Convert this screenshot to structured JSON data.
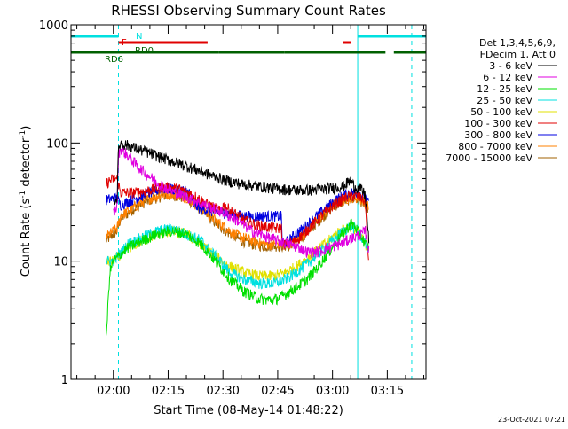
{
  "chart_data": {
    "type": "line",
    "title": "RHESSI Observing Summary Count Rates",
    "xlabel": "Start Time (08-May-14 01:48:22)",
    "ylabel_main": "Count Rate (s",
    "ylabel_sup1": "-1",
    "ylabel_mid": " detector",
    "ylabel_sup2": "-1",
    "ylabel_end": ")",
    "yscale": "log",
    "ylim": [
      1,
      1000
    ],
    "xlim_minutes": [
      108.4,
      205.6
    ],
    "x_ticks": [
      {
        "value": 120,
        "label": "02:00"
      },
      {
        "value": 135,
        "label": "02:15"
      },
      {
        "value": 150,
        "label": "02:30"
      },
      {
        "value": 165,
        "label": "02:45"
      },
      {
        "value": 180,
        "label": "03:00"
      },
      {
        "value": 195,
        "label": "03:15"
      }
    ],
    "y_ticks": [
      {
        "value": 1,
        "label": "1"
      },
      {
        "value": 10,
        "label": "10"
      },
      {
        "value": 100,
        "label": "100"
      },
      {
        "value": 1000,
        "label": "1000"
      }
    ],
    "legend_position": "right",
    "legend_header": [
      "Det 1,3,4,5,6,9,",
      "FDecim 1, Att 0"
    ],
    "series": [
      {
        "name": "3 - 6 keV",
        "color": "#000000",
        "points": [
          [
            120,
            33
          ],
          [
            121,
            33
          ],
          [
            121.4,
            90
          ],
          [
            122,
            100
          ],
          [
            125,
            93
          ],
          [
            130,
            82
          ],
          [
            135,
            72
          ],
          [
            140,
            64
          ],
          [
            145,
            56
          ],
          [
            150,
            49
          ],
          [
            155,
            45
          ],
          [
            160,
            43
          ],
          [
            165,
            41
          ],
          [
            170,
            40
          ],
          [
            174,
            40
          ],
          [
            178,
            41
          ],
          [
            181,
            42
          ],
          [
            183,
            43
          ],
          [
            184,
            46
          ],
          [
            185,
            48
          ],
          [
            186,
            43
          ],
          [
            188,
            40
          ],
          [
            189,
            36
          ],
          [
            190,
            14
          ]
        ]
      },
      {
        "name": "6 - 12 keV",
        "color": "#e000e0",
        "points": [
          [
            120,
            26
          ],
          [
            121,
            28
          ],
          [
            121.4,
            80
          ],
          [
            122,
            90
          ],
          [
            124,
            78
          ],
          [
            127,
            62
          ],
          [
            130,
            52
          ],
          [
            133,
            44
          ],
          [
            136,
            39
          ],
          [
            139,
            36
          ],
          [
            142,
            33
          ],
          [
            146,
            29
          ],
          [
            150,
            26
          ],
          [
            154,
            22
          ],
          [
            158,
            18
          ],
          [
            162,
            16
          ],
          [
            165,
            15
          ],
          [
            168,
            14
          ],
          [
            171,
            13
          ],
          [
            173,
            12
          ],
          [
            176,
            12
          ],
          [
            179,
            13
          ],
          [
            182,
            14
          ],
          [
            184,
            15
          ],
          [
            186,
            16
          ],
          [
            188,
            17
          ],
          [
            189,
            18
          ],
          [
            190,
            12
          ]
        ]
      },
      {
        "name": "12 - 25 keV",
        "color": "#00e000",
        "points": [
          [
            118,
            2.1
          ],
          [
            119,
            8
          ],
          [
            120,
            10
          ],
          [
            124,
            13
          ],
          [
            128,
            15
          ],
          [
            132,
            17
          ],
          [
            136,
            18
          ],
          [
            140,
            17
          ],
          [
            144,
            14
          ],
          [
            148,
            10
          ],
          [
            152,
            7
          ],
          [
            156,
            5.5
          ],
          [
            160,
            4.8
          ],
          [
            164,
            4.7
          ],
          [
            167,
            5.2
          ],
          [
            170,
            6
          ],
          [
            173,
            7
          ],
          [
            176,
            9
          ],
          [
            179,
            12
          ],
          [
            182,
            16
          ],
          [
            184,
            19
          ],
          [
            185,
            21
          ],
          [
            186,
            20
          ],
          [
            188,
            16
          ],
          [
            189,
            14
          ],
          [
            190,
            13
          ]
        ]
      },
      {
        "name": "25 - 50 keV",
        "color": "#00e0e0",
        "points": [
          [
            118,
            10
          ],
          [
            120,
            10
          ],
          [
            124,
            14
          ],
          [
            128,
            16
          ],
          [
            132,
            18
          ],
          [
            136,
            19
          ],
          [
            140,
            17
          ],
          [
            144,
            15
          ],
          [
            148,
            11
          ],
          [
            152,
            8
          ],
          [
            156,
            7
          ],
          [
            160,
            6.5
          ],
          [
            164,
            6.5
          ],
          [
            167,
            7
          ],
          [
            170,
            8
          ],
          [
            173,
            9.5
          ],
          [
            176,
            11.5
          ],
          [
            179,
            14
          ],
          [
            182,
            17
          ],
          [
            184,
            19
          ],
          [
            185,
            20
          ],
          [
            186,
            19
          ],
          [
            188,
            16
          ],
          [
            189,
            14
          ],
          [
            190,
            13
          ]
        ]
      },
      {
        "name": "50 - 100 keV",
        "color": "#e0e000",
        "points": [
          [
            118,
            10
          ],
          [
            120,
            10
          ],
          [
            124,
            13
          ],
          [
            128,
            15
          ],
          [
            132,
            17
          ],
          [
            136,
            18
          ],
          [
            140,
            17
          ],
          [
            144,
            14
          ],
          [
            148,
            11
          ],
          [
            152,
            9
          ],
          [
            156,
            8
          ],
          [
            160,
            7.5
          ],
          [
            164,
            7.5
          ],
          [
            167,
            8
          ],
          [
            170,
            9
          ],
          [
            173,
            10.5
          ],
          [
            176,
            12.5
          ],
          [
            179,
            15
          ],
          [
            182,
            18
          ],
          [
            184,
            19
          ],
          [
            185,
            20
          ],
          [
            186,
            19
          ],
          [
            188,
            16
          ],
          [
            189,
            14
          ],
          [
            190,
            13
          ]
        ]
      },
      {
        "name": "100 - 300 keV",
        "color": "#e00000",
        "points": [
          [
            118,
            45
          ],
          [
            119,
            48
          ],
          [
            120,
            50
          ],
          [
            121,
            50
          ],
          [
            122,
            38
          ],
          [
            126,
            38
          ],
          [
            130,
            40
          ],
          [
            133,
            42
          ],
          [
            136,
            42
          ],
          [
            139,
            40
          ],
          [
            142,
            36
          ],
          [
            144,
            33
          ],
          [
            146,
            30
          ],
          [
            148,
            28
          ],
          [
            149.5,
            26
          ],
          [
            150,
            30
          ],
          [
            152,
            27
          ],
          [
            156,
            22
          ],
          [
            160,
            20
          ],
          [
            164,
            19
          ],
          [
            166,
            19
          ],
          [
            166.3,
            14
          ],
          [
            168,
            14
          ],
          [
            170,
            15
          ],
          [
            172,
            17
          ],
          [
            175,
            21
          ],
          [
            178,
            26
          ],
          [
            181,
            31
          ],
          [
            184,
            35
          ],
          [
            186,
            36
          ],
          [
            188,
            34
          ],
          [
            189,
            32
          ],
          [
            190,
            8
          ]
        ]
      },
      {
        "name": "300 - 800 keV",
        "color": "#0000e0",
        "points": [
          [
            118,
            33
          ],
          [
            120,
            34
          ],
          [
            121,
            34
          ],
          [
            122,
            30
          ],
          [
            126,
            34
          ],
          [
            130,
            38
          ],
          [
            133,
            41
          ],
          [
            136,
            41
          ],
          [
            139,
            40
          ],
          [
            141,
            38
          ],
          [
            142,
            30
          ],
          [
            144,
            28
          ],
          [
            146,
            27
          ],
          [
            148,
            26
          ],
          [
            150,
            26
          ],
          [
            152,
            25
          ],
          [
            156,
            24
          ],
          [
            160,
            24
          ],
          [
            164,
            24
          ],
          [
            166,
            24
          ],
          [
            166.3,
            14
          ],
          [
            168,
            15
          ],
          [
            170,
            17
          ],
          [
            172,
            19
          ],
          [
            175,
            23
          ],
          [
            178,
            28
          ],
          [
            181,
            33
          ],
          [
            183,
            36
          ],
          [
            185,
            38
          ],
          [
            187,
            38
          ],
          [
            189,
            35
          ],
          [
            190,
            30
          ]
        ]
      },
      {
        "name": "800 - 7000 keV",
        "color": "#ff8000",
        "points": [
          [
            118,
            16
          ],
          [
            120,
            18
          ],
          [
            121,
            19
          ],
          [
            122,
            24
          ],
          [
            125,
            28
          ],
          [
            128,
            32
          ],
          [
            131,
            35
          ],
          [
            134,
            37
          ],
          [
            137,
            37
          ],
          [
            140,
            35
          ],
          [
            143,
            30
          ],
          [
            146,
            25
          ],
          [
            149,
            21
          ],
          [
            152,
            18
          ],
          [
            155,
            16
          ],
          [
            158,
            15
          ],
          [
            161,
            14
          ],
          [
            164,
            14
          ],
          [
            166,
            14
          ],
          [
            168,
            14
          ],
          [
            170,
            15
          ],
          [
            172,
            17
          ],
          [
            175,
            21
          ],
          [
            178,
            26
          ],
          [
            181,
            31
          ],
          [
            184,
            34
          ],
          [
            186,
            35
          ],
          [
            188,
            33
          ],
          [
            189,
            31
          ],
          [
            190,
            28
          ]
        ]
      },
      {
        "name": "7000 - 15000 keV",
        "color": "#a06000",
        "points": [
          [
            118,
            15
          ],
          [
            120,
            17
          ],
          [
            121,
            18
          ],
          [
            122,
            23
          ],
          [
            125,
            27
          ],
          [
            128,
            31
          ],
          [
            131,
            34
          ],
          [
            134,
            36
          ],
          [
            137,
            36
          ],
          [
            140,
            34
          ],
          [
            143,
            29
          ],
          [
            146,
            24
          ],
          [
            149,
            20
          ],
          [
            152,
            17
          ],
          [
            155,
            15
          ],
          [
            158,
            14
          ],
          [
            161,
            13.5
          ],
          [
            164,
            13.5
          ],
          [
            166,
            13.5
          ],
          [
            168,
            13.5
          ],
          [
            170,
            14.5
          ],
          [
            172,
            16.5
          ],
          [
            175,
            20
          ],
          [
            178,
            25
          ],
          [
            181,
            30
          ],
          [
            184,
            33
          ],
          [
            186,
            34
          ],
          [
            188,
            32
          ],
          [
            189,
            30
          ],
          [
            190,
            27
          ]
        ]
      }
    ],
    "annotations": [
      {
        "text": "N",
        "color": "#00e0e0"
      },
      {
        "text": "F",
        "color": "#e00000"
      },
      {
        "text": "RD0",
        "color": "#006000"
      },
      {
        "text": "RD6",
        "color": "#006000"
      }
    ],
    "flag_segments": [
      {
        "name": "N",
        "color": "#00e0e0",
        "level": 1,
        "ranges": [
          [
            108.4,
            121.4
          ],
          [
            186.9,
            205.6
          ]
        ]
      },
      {
        "name": "F",
        "color": "#e00000",
        "level": 2,
        "ranges": [
          [
            121.4,
            145.8
          ],
          [
            183,
            185
          ]
        ]
      },
      {
        "name": "RD0",
        "color": "#006000",
        "level": 3,
        "ranges": [
          [
            108.4,
            121.4
          ],
          [
            121.4,
            148.9
          ],
          [
            148.9,
            166.9
          ],
          [
            166.9,
            194.5
          ],
          [
            196.8,
            205.6
          ]
        ]
      }
    ],
    "vlines_solid": [
      108.4,
      186.9
    ],
    "vlines_dashed": [
      121.4,
      201.7
    ]
  },
  "footer": {
    "date": "23-Oct-2021 07:21"
  }
}
